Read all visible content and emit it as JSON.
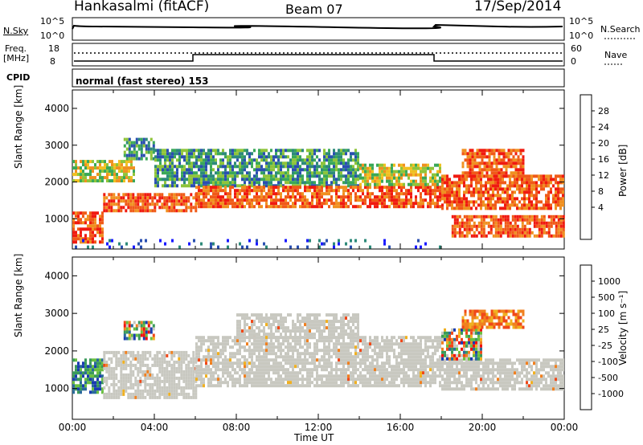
{
  "header": {
    "station": "Hankasalmi (fitACF)",
    "beam": "Beam 07",
    "date": "17/Sep/2014"
  },
  "noise_panel": {
    "left_label": "N.Sky",
    "left_ticks": [
      "10^5",
      "10^0"
    ],
    "right_label": "N.Search",
    "right_ticks": [
      "10^5",
      "10^0"
    ]
  },
  "freq_panel": {
    "left_label_line1": "Freq.",
    "left_label_line2": "[MHz]",
    "left_ticks": [
      "18",
      "8"
    ],
    "right_label": "Nave",
    "right_ticks": [
      "60",
      "0"
    ]
  },
  "cpid_panel": {
    "label": "CPID",
    "mode_text": "normal (fast stereo) 153"
  },
  "chart_data": [
    {
      "type": "heatmap",
      "panel": "power",
      "ylabel": "Slant Range [km]",
      "ylim": [
        180,
        4500
      ],
      "yticks": [
        "1000",
        "2000",
        "3000",
        "4000"
      ],
      "xlabel": "Time UT",
      "xlim": [
        "00:00",
        "24:00"
      ],
      "xticks": [
        "00:00",
        "04:00",
        "08:00",
        "12:00",
        "16:00",
        "20:00",
        "00:00"
      ],
      "colorbar": {
        "label": "Power [dB]",
        "ticks": [
          "28",
          "24",
          "20",
          "16",
          "12",
          "8",
          "4"
        ],
        "colors": [
          "#1a1aff",
          "#2a4fb0",
          "#2d8a7a",
          "#3aa858",
          "#8fc43a",
          "#f0c020",
          "#f09020",
          "#f05a18",
          "#f01a10"
        ]
      },
      "regions": [
        {
          "t0": 0.0,
          "t1": 1.5,
          "r0": 400,
          "r1": 1200,
          "level": "high"
        },
        {
          "t0": 0.0,
          "t1": 3.0,
          "r0": 2000,
          "r1": 2600,
          "level": "medium"
        },
        {
          "t0": 1.5,
          "t1": 6.0,
          "r0": 1200,
          "r1": 1700,
          "level": "high"
        },
        {
          "t0": 2.5,
          "t1": 4.0,
          "r0": 2600,
          "r1": 3200,
          "level": "low"
        },
        {
          "t0": 4.0,
          "t1": 14.0,
          "r0": 1900,
          "r1": 2900,
          "level": "low"
        },
        {
          "t0": 6.0,
          "t1": 18.0,
          "r0": 1300,
          "r1": 1900,
          "level": "high"
        },
        {
          "t0": 14.0,
          "t1": 18.0,
          "r0": 1900,
          "r1": 2500,
          "level": "medium"
        },
        {
          "t0": 18.0,
          "t1": 24.0,
          "r0": 1300,
          "r1": 2200,
          "level": "high"
        },
        {
          "t0": 19.0,
          "t1": 22.0,
          "r0": 2200,
          "r1": 2900,
          "level": "high"
        },
        {
          "t0": 18.5,
          "t1": 24.0,
          "r0": 500,
          "r1": 1100,
          "level": "high"
        },
        {
          "t0": 0.0,
          "t1": 18.0,
          "r0": 250,
          "r1": 450,
          "level": "speckle"
        }
      ]
    },
    {
      "type": "heatmap",
      "panel": "velocity",
      "ylabel": "Slant Range [km]",
      "ylim": [
        180,
        4500
      ],
      "yticks": [
        "1000",
        "2000",
        "3000",
        "4000"
      ],
      "xlabel": "Time UT",
      "xlim": [
        "00:00",
        "24:00"
      ],
      "xticks": [
        "00:00",
        "04:00",
        "08:00",
        "12:00",
        "16:00",
        "20:00",
        "00:00"
      ],
      "colorbar": {
        "label": "Velocity [m s⁻¹]",
        "ticks": [
          "1000",
          "500",
          "100",
          "25",
          "-25",
          "-100",
          "-500",
          "-1000"
        ],
        "colors": [
          "#1a3cb0",
          "#2a6a9a",
          "#3a9a5a",
          "#6ac040",
          "#c8c8c0",
          "#f0b020",
          "#f08020",
          "#f04818",
          "#f01010"
        ]
      },
      "regions": [
        {
          "t0": 0.0,
          "t1": 1.5,
          "r0": 900,
          "r1": 1800,
          "level": "positive"
        },
        {
          "t0": 1.5,
          "t1": 6.0,
          "r0": 800,
          "r1": 2000,
          "level": "ground"
        },
        {
          "t0": 6.0,
          "t1": 18.0,
          "r0": 1100,
          "r1": 2400,
          "level": "ground"
        },
        {
          "t0": 8.0,
          "t1": 14.0,
          "r0": 2400,
          "r1": 3000,
          "level": "ground"
        },
        {
          "t0": 18.0,
          "t1": 24.0,
          "r0": 1000,
          "r1": 1800,
          "level": "ground"
        },
        {
          "t0": 18.0,
          "t1": 20.0,
          "r0": 1800,
          "r1": 2600,
          "level": "mixed"
        },
        {
          "t0": 19.0,
          "t1": 22.0,
          "r0": 2600,
          "r1": 3100,
          "level": "negative"
        },
        {
          "t0": 2.5,
          "t1": 4.0,
          "r0": 2300,
          "r1": 2800,
          "level": "mixed"
        }
      ]
    }
  ]
}
